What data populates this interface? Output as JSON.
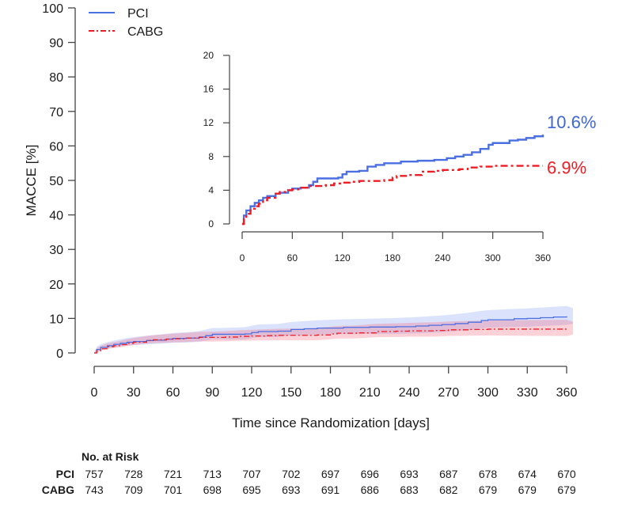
{
  "chart_data": {
    "type": "line",
    "title": "",
    "xlabel": "Time since Randomization [days]",
    "ylabel": "MACCE [%]",
    "xlim": [
      0,
      360
    ],
    "ylim": [
      0,
      100
    ],
    "x_ticks": [
      0,
      30,
      60,
      90,
      120,
      150,
      180,
      210,
      240,
      270,
      300,
      330,
      360
    ],
    "y_ticks": [
      0,
      10,
      20,
      30,
      40,
      50,
      60,
      70,
      80,
      90,
      100
    ],
    "grid": false,
    "legend": {
      "position": "top-left",
      "entries": [
        "PCI",
        "CABG"
      ]
    },
    "series": [
      {
        "name": "PCI",
        "color": "#4a6fe3",
        "style": "solid",
        "x": [
          0,
          2,
          5,
          10,
          15,
          20,
          25,
          30,
          40,
          45,
          55,
          60,
          70,
          80,
          85,
          90,
          100,
          115,
          120,
          125,
          140,
          150,
          160,
          170,
          190,
          210,
          230,
          245,
          255,
          265,
          275,
          285,
          295,
          300,
          320,
          330,
          340,
          350,
          360
        ],
        "y": [
          0,
          1.0,
          1.6,
          2.1,
          2.5,
          2.8,
          3.1,
          3.3,
          3.6,
          3.7,
          4.0,
          4.2,
          4.3,
          4.6,
          5.0,
          5.4,
          5.4,
          5.5,
          5.9,
          6.2,
          6.3,
          6.8,
          7.0,
          7.2,
          7.4,
          7.5,
          7.6,
          7.8,
          8.0,
          8.2,
          8.5,
          8.9,
          9.4,
          9.6,
          9.9,
          10.0,
          10.2,
          10.4,
          10.6
        ],
        "ci_upper_end": 13.0,
        "ci_lower_end": 8.5
      },
      {
        "name": "CABG",
        "color": "#ee1c25",
        "style": "dashdot",
        "x": [
          0,
          2,
          5,
          10,
          15,
          20,
          25,
          30,
          40,
          45,
          55,
          60,
          70,
          80,
          90,
          100,
          110,
          120,
          130,
          140,
          160,
          170,
          180,
          185,
          200,
          215,
          230,
          240,
          260,
          270,
          285,
          300,
          330,
          360
        ],
        "y": [
          0,
          0.6,
          1.2,
          1.8,
          2.1,
          2.4,
          2.8,
          3.1,
          3.6,
          3.8,
          4.0,
          4.1,
          4.3,
          4.5,
          4.5,
          4.6,
          4.8,
          4.9,
          5.0,
          5.1,
          5.1,
          5.2,
          5.5,
          5.7,
          5.8,
          6.2,
          6.3,
          6.4,
          6.5,
          6.7,
          6.8,
          6.9,
          6.9,
          6.9
        ],
        "ci_upper_end": 9.0,
        "ci_lower_end": 5.3
      }
    ],
    "inset": {
      "xlim": [
        0,
        360
      ],
      "ylim": [
        0,
        20
      ],
      "x_ticks": [
        0,
        60,
        120,
        180,
        240,
        300,
        360
      ],
      "y_ticks": [
        0,
        4,
        8,
        12,
        16,
        20
      ],
      "annotations": [
        {
          "text": "10.6%",
          "series": "PCI",
          "color": "#3f66d6"
        },
        {
          "text": "6.9%",
          "series": "CABG",
          "color": "#ee1c25"
        }
      ]
    },
    "risk_table": {
      "title": "No. at Risk",
      "time_points": [
        0,
        30,
        60,
        90,
        120,
        150,
        180,
        210,
        240,
        270,
        300,
        330,
        360
      ],
      "rows": [
        {
          "label": "PCI",
          "values": [
            757,
            728,
            721,
            713,
            707,
            702,
            697,
            696,
            693,
            687,
            678,
            674,
            670
          ]
        },
        {
          "label": "CABG",
          "values": [
            743,
            709,
            701,
            698,
            695,
            693,
            691,
            686,
            683,
            682,
            679,
            679,
            679
          ]
        }
      ]
    }
  }
}
